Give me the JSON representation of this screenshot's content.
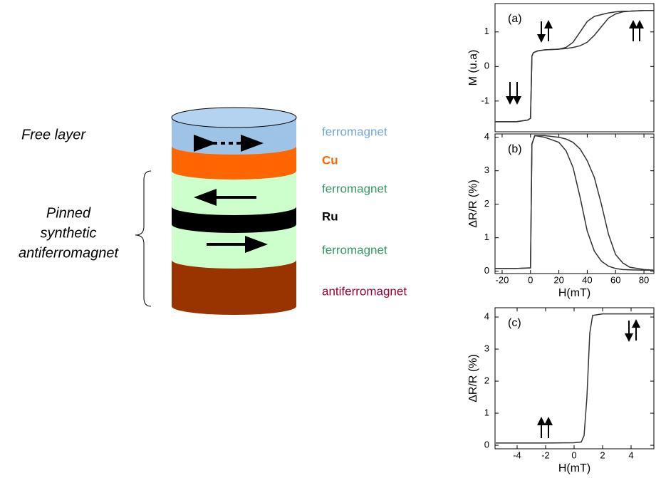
{
  "diagram": {
    "free_label": "Free layer",
    "pinned_label": [
      "Pinned",
      "synthetic",
      "antiferromagnet"
    ],
    "layers": [
      "ferromagnet",
      "Cu",
      "ferromagnet",
      "Ru",
      "ferromagnet",
      "antiferromagnet"
    ]
  },
  "chart_data": [
    {
      "type": "line",
      "panel": "(a)",
      "ylabel": "M (u.a)",
      "x": [
        -25,
        -20,
        -10,
        -2,
        0,
        1,
        2,
        5,
        10,
        20,
        25,
        30,
        35,
        40,
        45,
        50,
        55,
        60,
        65,
        70,
        80,
        87
      ],
      "series": [
        {
          "color": "#333333",
          "values": [
            -1.6,
            -1.6,
            -1.6,
            -1.55,
            -1.5,
            0.3,
            0.4,
            0.45,
            0.48,
            0.5,
            0.55,
            0.7,
            1.0,
            1.3,
            1.45,
            1.5,
            1.55,
            1.58,
            1.6,
            1.6,
            1.62,
            1.62
          ]
        },
        {
          "color": "#333333",
          "values": [
            -1.6,
            -1.6,
            -1.6,
            -1.55,
            -1.5,
            0.3,
            0.4,
            0.45,
            0.48,
            0.5,
            0.52,
            0.55,
            0.6,
            0.7,
            0.9,
            1.15,
            1.4,
            1.52,
            1.58,
            1.6,
            1.62,
            1.62
          ]
        }
      ],
      "xlim": [
        -25,
        87
      ],
      "ylim": [
        -1.89,
        1.82
      ],
      "yticks": [
        -1,
        0,
        1
      ]
    },
    {
      "type": "line",
      "panel": "(b)",
      "ylabel": "ΔR/R (%)",
      "xlabel": "H(mT)",
      "x": [
        -25,
        -10,
        0,
        0.5,
        1,
        3,
        10,
        20,
        25,
        30,
        35,
        40,
        45,
        50,
        55,
        60,
        65,
        70,
        80,
        87
      ],
      "series": [
        {
          "color": "#333333",
          "values": [
            0.08,
            0.08,
            0.1,
            2,
            3.8,
            4.05,
            4.0,
            3.85,
            3.6,
            3.1,
            2.2,
            1.2,
            0.6,
            0.3,
            0.15,
            0.08,
            0.05,
            0.04,
            0.03,
            0.03
          ]
        },
        {
          "color": "#333333",
          "values": [
            0.08,
            0.08,
            0.1,
            2,
            3.8,
            4.05,
            4.05,
            4.0,
            3.95,
            3.85,
            3.65,
            3.3,
            2.8,
            2.0,
            1.1,
            0.5,
            0.25,
            0.12,
            0.05,
            0.03
          ]
        }
      ],
      "xlim": [
        -25,
        87
      ],
      "ylim": [
        -0.07,
        4.1
      ],
      "xticks": [
        -20,
        0,
        20,
        40,
        60,
        80
      ],
      "yticks": [
        0,
        1,
        2,
        3,
        4
      ]
    },
    {
      "type": "line",
      "panel": "(c)",
      "ylabel": "ΔR/R (%)",
      "xlabel": "H(mT)",
      "x": [
        -5.5,
        -2,
        0,
        0.5,
        0.7,
        0.9,
        1.0,
        1.1,
        1.3,
        2,
        5.6
      ],
      "series": [
        {
          "color": "#333333",
          "values": [
            0.07,
            0.07,
            0.08,
            0.1,
            0.3,
            1.5,
            2.5,
            3.5,
            4.05,
            4.1,
            4.1
          ]
        }
      ],
      "xlim": [
        -5.55,
        5.6
      ],
      "ylim": [
        -0.11,
        4.29
      ],
      "xticks": [
        -4,
        -2,
        0,
        2,
        4
      ],
      "yticks": [
        0,
        1,
        2,
        3,
        4
      ]
    }
  ]
}
